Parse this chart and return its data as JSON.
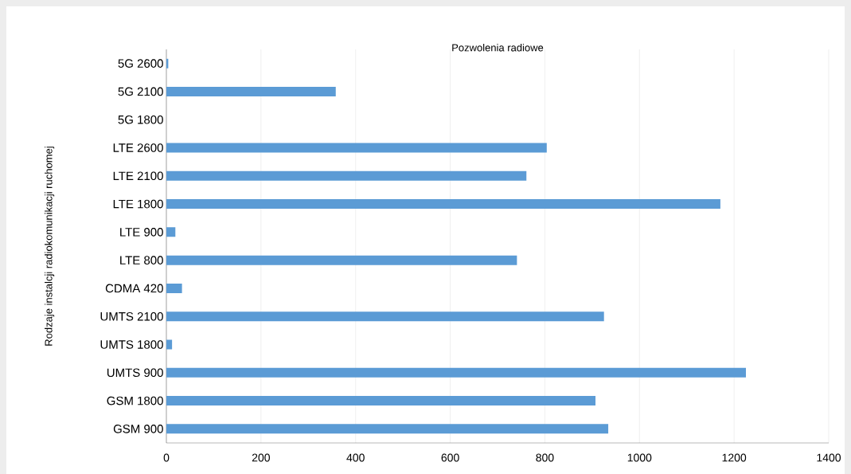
{
  "chart_data": {
    "type": "bar",
    "orientation": "horizontal",
    "title": "Pozwolenia radiowe",
    "ylabel": "Rodzaje instalcji radiokomunikacji ruchomej",
    "categories": [
      "5G 2600",
      "5G 2100",
      "5G 1800",
      "LTE 2600",
      "LTE 2100",
      "LTE 1800",
      "LTE 900",
      "LTE 800",
      "CDMA 420",
      "UMTS 2100",
      "UMTS 1800",
      "UMTS 900",
      "GSM 1800",
      "GSM 900"
    ],
    "values": [
      4,
      358,
      0,
      804,
      761,
      1171,
      19,
      741,
      33,
      925,
      12,
      1225,
      907,
      934
    ],
    "color": "#5b9bd5",
    "xlim": [
      0,
      1400
    ],
    "xticks": [
      0,
      200,
      400,
      600,
      800,
      1000,
      1200,
      1400
    ],
    "grid": "x"
  }
}
